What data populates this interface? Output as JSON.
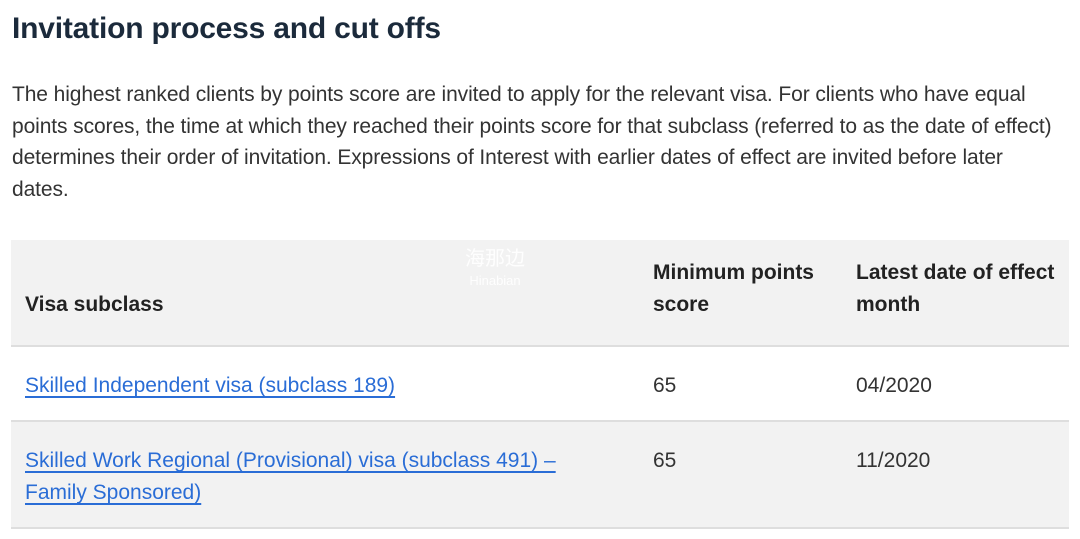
{
  "title": "Invitation process and cut offs",
  "intro": "The highest ranked clients by points score are invited to apply for the relevant visa. For clients who have equal points scores, the time at which they reached their points score for that subclass (referred to as the date of effect) determines their order of invitation. Expressions of Interest with earlier dates of effect are invited before later dates.",
  "table": {
    "headers": [
      "Visa subclass",
      "Minimum points score",
      "Latest date of effect month"
    ],
    "rows": [
      {
        "visa": "Skilled Independent visa (subclass 189)",
        "points": "65",
        "date": "04/2020"
      },
      {
        "visa": "Skilled Work Regional (Provisional) visa (subclass 491) – Family Sponsored)",
        "points": "65",
        "date": "11/2020"
      }
    ]
  },
  "watermark": {
    "cn": "海那边",
    "en": "Hinabian"
  },
  "colors": {
    "link": "#2a6dd6",
    "header_bg": "#f2f2f2",
    "title": "#1b2a3b"
  }
}
